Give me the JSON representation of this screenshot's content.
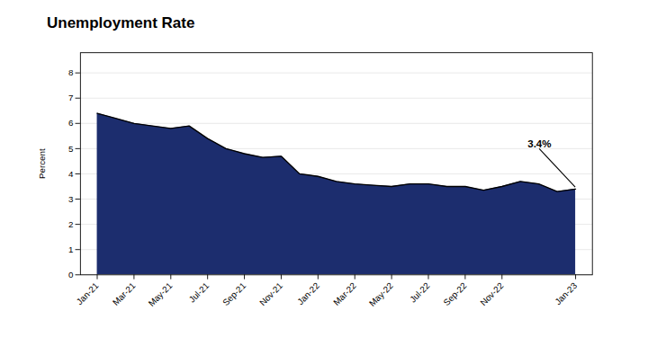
{
  "chart_data": {
    "type": "area",
    "title": "Unemployment Rate",
    "ylabel": "Percent",
    "categories": [
      "Jan-21",
      null,
      "Mar-21",
      null,
      "May-21",
      null,
      "Jul-21",
      null,
      "Sep-21",
      null,
      "Nov-21",
      null,
      "Jan-22",
      null,
      "Mar-22",
      null,
      "May-22",
      null,
      "Jul-22",
      null,
      "Sep-22",
      null,
      "Nov-22",
      null,
      null,
      null,
      "Jan-23"
    ],
    "values": [
      6.4,
      6.2,
      6.0,
      5.9,
      5.8,
      5.9,
      5.4,
      5.0,
      4.8,
      4.65,
      4.7,
      4.0,
      3.9,
      3.7,
      3.6,
      3.55,
      3.5,
      3.6,
      3.6,
      3.5,
      3.5,
      3.35,
      3.5,
      3.7,
      3.6,
      3.3,
      3.4
    ],
    "color": "#1c2d6e",
    "ylim": [
      0,
      8.8
    ],
    "yticks": [
      0,
      1,
      2,
      3,
      4,
      5,
      6,
      7,
      8
    ],
    "grid": true,
    "annotation": "3.4%"
  }
}
